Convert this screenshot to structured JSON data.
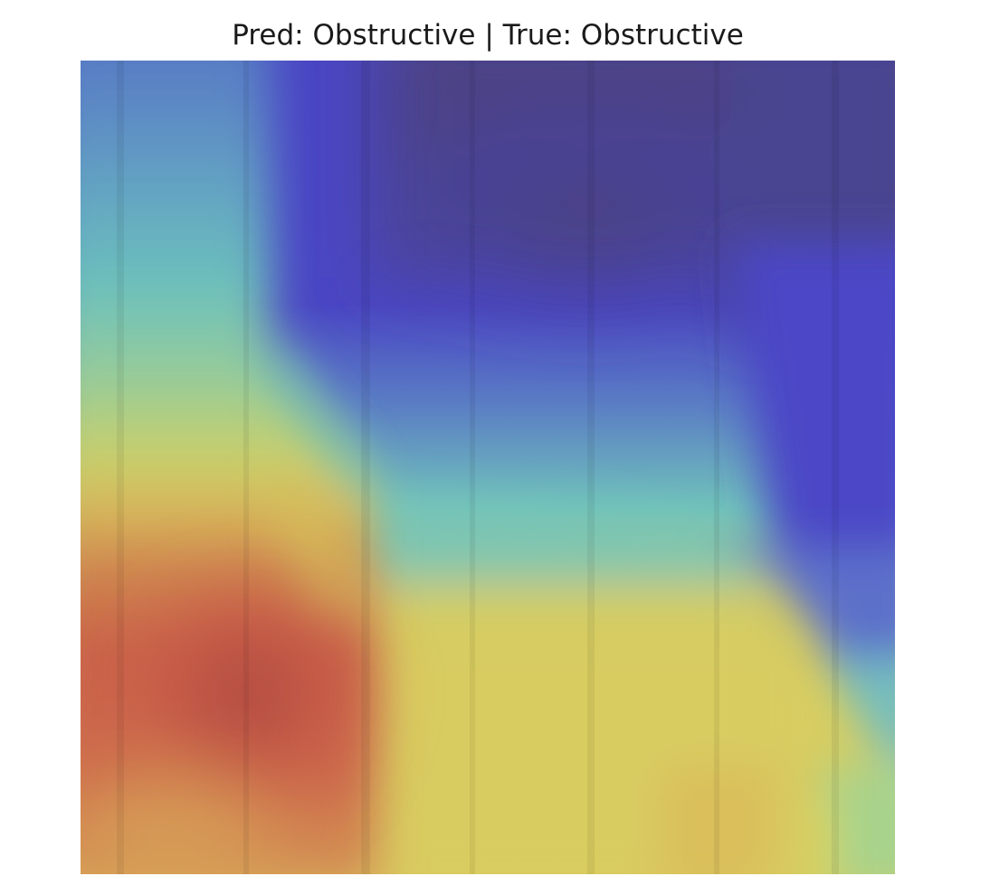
{
  "figure": {
    "title": "Pred: Obstructive | True: Obstructive"
  },
  "heatmap": {
    "colormap": "jet",
    "overlay_opacity": 0.7,
    "palette": {
      "deep_navy": "#4b4380",
      "indigo": "#4a46c4",
      "steel_blue": "#5678c2",
      "teal": "#6fc4bd",
      "yellow_green": "#c8d46a",
      "yellow": "#dcd060",
      "orange": "#d9944f",
      "red": "#cf5548",
      "dark_red": "#a84b3e"
    }
  }
}
